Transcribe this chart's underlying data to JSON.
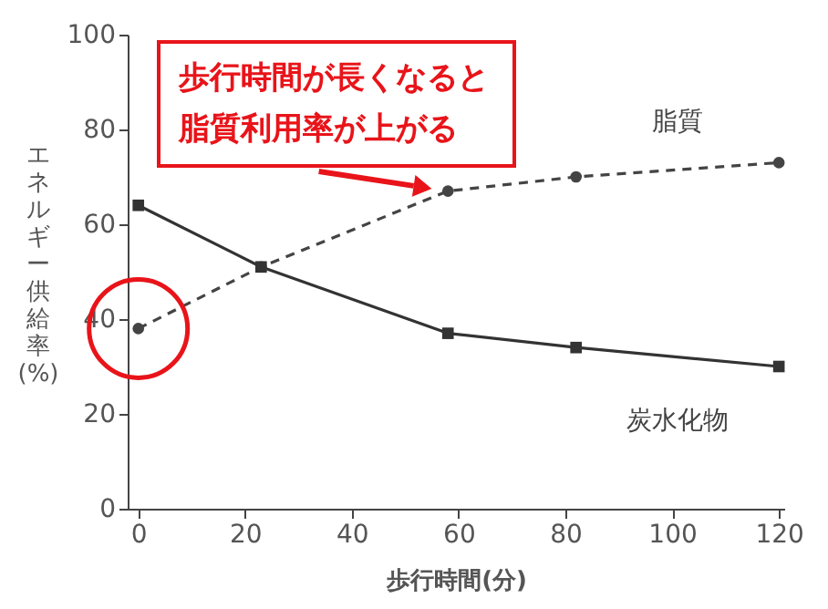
{
  "chart_data": {
    "type": "line",
    "xlabel": "歩行時間(分)",
    "ylabel": "エネルギー供給率\n(%)",
    "x": [
      0,
      23,
      58,
      82,
      120
    ],
    "series": [
      {
        "name": "脂質",
        "color": "#444444",
        "values": [
          38,
          51,
          67,
          70,
          73
        ],
        "marker": "circle",
        "line_style": "dashed"
      },
      {
        "name": "炭水化物",
        "color": "#333333",
        "values": [
          64,
          51,
          37,
          34,
          30
        ],
        "marker": "square",
        "line_style": "solid"
      }
    ],
    "xlim": [
      -2,
      121
    ],
    "xticks": [
      0,
      20,
      40,
      60,
      80,
      100,
      120
    ],
    "ylim": [
      0,
      100
    ],
    "yticks": [
      0,
      20,
      40,
      60,
      80,
      100
    ],
    "annotations": [
      {
        "text": "歩行時間が長くなると脂質利用率が上がる",
        "x": 58,
        "y": 67
      }
    ]
  }
}
